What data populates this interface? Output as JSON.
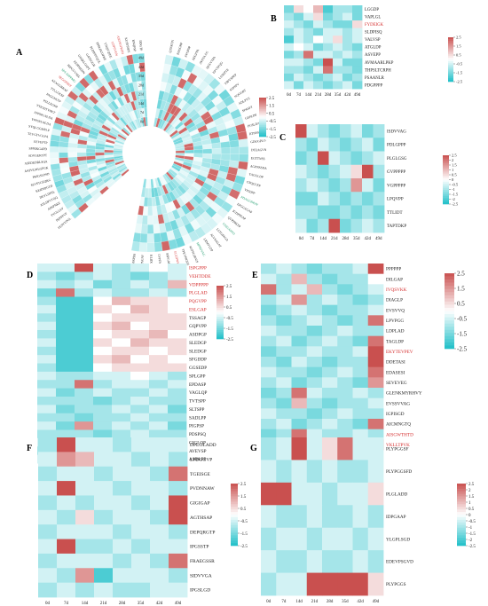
{
  "colors": {
    "low": "#1fbfc8",
    "mid": "#ffffff",
    "high": "#c9504f",
    "highlight_label": "#d42b2b",
    "green_label": "#1a9a6a"
  },
  "chart_data": [
    {
      "id": "A",
      "type": "heatmap",
      "layout": "circular",
      "panel_label": "A",
      "columns": [
        "0d",
        "7d",
        "14d",
        "21d",
        "28d",
        "35d",
        "42d",
        "49d"
      ],
      "colorbar_ticks": [
        "2.5",
        "1.5",
        "0.5",
        "-0.5",
        "-1.5",
        "-2.5"
      ],
      "colorbar_range": [
        -2.5,
        2.5
      ],
      "left_fan_rows": [
        "DDGTP",
        "RNQPSP",
        "KGSFSSPS",
        "ASGSGFRDH",
        "LDPSVGN",
        "YNQVQIEE",
        "TPPLDCOFKE",
        "PLDNSVQGL",
        "GATEGGR",
        "GSQKLGSPT",
        "EESPHEDN",
        "RIPGVVSEL",
        "SPS APPPMG",
        "SEGGPHST",
        "AEAGGRRAF",
        "TTLLGESP",
        "PAGGNLTP",
        "PSLLEGKP",
        "YTIGDTVPKT",
        "FPPSPLNLDA",
        "YPPSPLNLDA",
        "SYQLGGMPLP",
        "TEVGTVGLPA",
        "EEVEPTP",
        "SPPEKGAPD",
        "SDVGEKTPT",
        "ASEDEDRLSQA",
        "AAPVLMLGPGK",
        "PKIGSLPSD",
        "SLVSTGEQKG",
        "KEIDSPGTD",
        "DEVLDPSL",
        "ASLDPVTQQ",
        "APSPNKE",
        "TVGLLSV",
        "PEPPPVF",
        "FESVVPGL"
      ],
      "right_fan_rows": [
        "QTNKTN",
        "NSGGHP",
        "AVGPSP",
        "AEGPTA",
        "AVSYAAG",
        "QGLVTPA",
        "EPVTPQG",
        "LSSEPTE",
        "TSPYSPEP",
        "SSPSPV",
        "NQGGRT",
        "ADLPYS",
        "SPASPT",
        "GEPLDP",
        "PGSLDAP",
        "RTNSSLA",
        "GDGGPLO",
        "DTEAGVN",
        "EGTTNSS",
        "AGPNSSDA",
        "YAGGLDP",
        "GPQGLEP",
        "VIGDPP",
        "PDAGGDPAV",
        "EPGGAGAP",
        "IGDPPEAP",
        "QVPPRLTP",
        "VDIGAPPD",
        "LLTGPAGA",
        "ALVSAGAT",
        "LRMVLDP",
        "MPSDVAG",
        "SGPPGAVGS",
        "TPEVPIGDS",
        "ELEDWSP",
        "SSPGALDD",
        "LVPDVAD",
        "KLIDQSKE",
        "QDPAGAV",
        "LYGSSPDS"
      ],
      "left_red_row_indices": [
        3,
        4,
        13
      ],
      "left_green_row_indices": [
        12
      ],
      "right_red_row_indices": [
        34
      ],
      "right_green_row_indices": [
        23,
        27,
        31
      ]
    },
    {
      "id": "B",
      "type": "heatmap",
      "panel_label": "B",
      "columns": [
        "0d",
        "7d",
        "14d",
        "21d",
        "28d",
        "35d",
        "42d",
        "49d"
      ],
      "rows": [
        "LGGDP",
        "VAPLGL",
        "FYDEIGK",
        "SLDPISQ",
        "VALVSP",
        "ATGLDP",
        "ASVEPP",
        "AVMAARLPKP",
        "THPSLTCRPH",
        "PSAANLR",
        "PDGPPPP"
      ],
      "red_row_indices": [
        2
      ],
      "colorbar_ticks": [
        "2.5",
        "1.5",
        "0.5",
        "-0.5",
        "-1.5",
        "-2.5"
      ],
      "colorbar_range": [
        -2.5,
        2.5
      ],
      "values": [
        [
          -1.5,
          0.5,
          0.0,
          1.0,
          -2.0,
          -1.0,
          -1.0,
          -1.5
        ],
        [
          -1.0,
          -1.5,
          -0.5,
          0.5,
          -1.5,
          -1.0,
          -0.5,
          -1.5
        ],
        [
          -0.5,
          -1.0,
          -1.5,
          -0.5,
          -1.0,
          -1.5,
          -1.5,
          0.5
        ],
        [
          -1.0,
          -0.5,
          -1.0,
          -1.5,
          -0.5,
          -0.5,
          -1.0,
          -0.5
        ],
        [
          -2.0,
          -0.5,
          -1.0,
          0.0,
          -0.5,
          0.5,
          -1.0,
          -0.5
        ],
        [
          -0.5,
          0.0,
          -0.5,
          -1.5,
          -1.0,
          -0.5,
          -1.0,
          -1.5
        ],
        [
          -1.5,
          -1.0,
          2.0,
          -0.5,
          -0.5,
          -1.0,
          -0.5,
          -1.0
        ],
        [
          -0.5,
          -0.5,
          -1.0,
          -1.5,
          2.5,
          -0.5,
          -1.5,
          -1.5
        ],
        [
          -1.0,
          -1.0,
          -1.5,
          -0.5,
          2.0,
          -1.0,
          -1.0,
          -1.5
        ],
        [
          -1.5,
          -0.5,
          -1.0,
          -1.5,
          -1.0,
          -0.5,
          -1.5,
          -1.0
        ],
        [
          -0.5,
          -1.5,
          -0.5,
          -1.0,
          -1.5,
          -1.0,
          -0.5,
          -1.5
        ]
      ]
    },
    {
      "id": "C",
      "type": "heatmap",
      "panel_label": "C",
      "columns": [
        "0d",
        "7d",
        "14d",
        "21d",
        "28d",
        "35d",
        "42d",
        "49d"
      ],
      "rows": [
        "ISDVVAG",
        "PDLGPPP",
        "PLGLGSG",
        "GVPPPPP",
        "VGPPPPP",
        "LPQVPP",
        "TTLIDT",
        "TAPTDKP"
      ],
      "colorbar_ticks": [
        "2.5",
        "2",
        "1.5",
        "1",
        "0.5",
        "0",
        "-0.5",
        "-1",
        "-1.5",
        "-2",
        "-2.5"
      ],
      "colorbar_range": [
        -2.5,
        2.5
      ],
      "values": [
        [
          2.5,
          -0.5,
          -1.0,
          -1.5,
          -1.0,
          -0.5,
          -1.5,
          -1.0
        ],
        [
          -1.0,
          -1.5,
          -0.5,
          -1.0,
          -1.5,
          -1.0,
          -0.5,
          -1.5
        ],
        [
          -1.5,
          -1.0,
          2.5,
          -0.5,
          -1.0,
          -1.5,
          -1.0,
          -0.5
        ],
        [
          -0.5,
          -1.0,
          -1.5,
          -1.0,
          -0.5,
          0.5,
          2.5,
          -1.0
        ],
        [
          -1.0,
          -0.5,
          -1.0,
          -1.5,
          -1.0,
          1.5,
          -0.5,
          -1.5
        ],
        [
          -1.5,
          -1.5,
          -0.5,
          -1.0,
          -1.5,
          -1.0,
          -1.5,
          -1.0
        ],
        [
          -1.0,
          -1.0,
          -1.5,
          -1.5,
          -1.0,
          -1.5,
          -1.0,
          -1.5
        ],
        [
          -0.5,
          -1.5,
          -1.0,
          2.5,
          -1.5,
          -1.0,
          -0.5,
          -1.0
        ]
      ]
    },
    {
      "id": "D",
      "type": "heatmap",
      "panel_label": "D",
      "columns": [
        "0d",
        "7d",
        "14d",
        "21d",
        "28d",
        "35d",
        "42d",
        "49d"
      ],
      "rows": [
        "ISPGPPP",
        "VEHTDDE",
        "VDPPPPP",
        "PLGLAD",
        "PQGVPP",
        "ESLGAP",
        "TSSAGP",
        "GQPVPP",
        "ASDPGP",
        "SLEDGP",
        "SLEDGP",
        "SFGDDP",
        "GGSEDP",
        "SPLGPP",
        "EPDASP",
        "VAGLQP",
        "TVTSPP",
        "SLTSPP",
        "SADLPP",
        "PIGPSP",
        "PDSPSQ",
        "GIGLQP",
        "AVEVSP",
        "ASDLPP"
      ],
      "red_row_indices": [
        0,
        1,
        2,
        3,
        4,
        5
      ],
      "colorbar_ticks": [
        "2.5",
        "1.5",
        "0.5",
        "-0.5",
        "-1.5",
        "-2.5"
      ],
      "colorbar_range": [
        -2.5,
        2.5
      ],
      "values": [
        [
          -0.5,
          -0.5,
          2.5,
          -0.5,
          -1.0,
          -0.5,
          0.0,
          -0.5
        ],
        [
          -1.0,
          -1.5,
          -1.0,
          -0.5,
          -1.0,
          -1.5,
          -1.0,
          -0.5
        ],
        [
          -0.5,
          -1.0,
          -0.5,
          -1.5,
          -1.0,
          -0.5,
          -1.0,
          1.0
        ],
        [
          -1.5,
          2.0,
          -1.0,
          -0.5,
          -1.0,
          -1.0,
          -0.5,
          -1.0
        ],
        [
          -1.0,
          -2.0,
          -2.0,
          0.0,
          1.0,
          0.5,
          0.5,
          0.0
        ],
        [
          -0.5,
          -2.0,
          -2.0,
          0.5,
          0.0,
          1.0,
          0.5,
          0.0
        ],
        [
          -1.0,
          -2.0,
          -2.0,
          0.0,
          0.5,
          0.5,
          0.5,
          0.5
        ],
        [
          -0.5,
          -2.0,
          -2.0,
          0.5,
          1.0,
          0.0,
          0.5,
          0.5
        ],
        [
          -1.0,
          -2.0,
          -2.0,
          0.0,
          0.5,
          0.5,
          1.0,
          0.0
        ],
        [
          -0.5,
          -2.0,
          -2.0,
          0.5,
          0.0,
          1.0,
          0.5,
          0.5
        ],
        [
          -1.0,
          -2.0,
          -2.0,
          0.0,
          0.5,
          0.5,
          0.0,
          0.5
        ],
        [
          -0.5,
          -2.0,
          -2.0,
          0.5,
          1.0,
          0.0,
          0.5,
          0.0
        ],
        [
          -1.0,
          -2.0,
          -2.0,
          0.0,
          0.5,
          0.5,
          0.5,
          0.5
        ],
        [
          -0.5,
          -1.0,
          -1.0,
          -0.5,
          -0.5,
          0.0,
          -0.5,
          -1.0
        ],
        [
          -1.0,
          -1.0,
          2.0,
          -1.0,
          -0.5,
          -0.5,
          -1.0,
          -0.5
        ],
        [
          -0.5,
          -1.5,
          -1.0,
          -0.5,
          -1.0,
          -1.0,
          -0.5,
          -1.0
        ],
        [
          -1.0,
          -1.0,
          -1.0,
          -1.5,
          -1.0,
          -0.5,
          -1.0,
          -1.0
        ],
        [
          -0.5,
          -1.5,
          -1.0,
          -1.0,
          -0.5,
          -1.0,
          -0.5,
          -1.5
        ],
        [
          -1.0,
          -1.0,
          -1.5,
          -1.0,
          -1.0,
          -0.5,
          -1.0,
          -1.0
        ],
        [
          -0.5,
          -1.5,
          1.5,
          -1.0,
          -0.5,
          -1.0,
          -0.5,
          -1.5
        ],
        [
          -1.0,
          -1.0,
          -1.0,
          -1.5,
          -1.0,
          -0.5,
          -1.0,
          -1.0
        ],
        [
          -0.5,
          -1.5,
          -1.0,
          -1.0,
          -0.5,
          -1.0,
          -0.5,
          -1.5
        ],
        [
          -1.0,
          -1.0,
          -1.5,
          -1.0,
          -1.0,
          -0.5,
          -1.0,
          -1.0
        ],
        [
          -0.5,
          -1.5,
          -1.0,
          -1.0,
          -0.5,
          -1.0,
          -0.5,
          -1.5
        ]
      ]
    },
    {
      "id": "E",
      "type": "heatmap",
      "panel_label": "E",
      "columns": [
        "0d",
        "7d",
        "14d",
        "21d",
        "28d",
        "35d",
        "42d",
        "49d"
      ],
      "rows": [
        "PPPPPP",
        "DILGAP",
        "IVQSVKK",
        "DIAGLP",
        "EVSVVQ",
        "LPVPGG",
        "LDPLAD",
        "TAGLDP",
        "EKYTEVPEV",
        "DDETASI",
        "EDASESI",
        "SEVEVEG",
        "GLENKMYRHVY",
        "EVSSVVAG",
        "IGPISGD",
        "AICMNGTQ",
        "AISGWTHTD",
        "VKLLTPVK"
      ],
      "red_row_indices": [
        2,
        8,
        16,
        17
      ],
      "colorbar_ticks": [
        "2.5",
        "1.5",
        "0.5",
        "-0.5",
        "-1.5",
        "-2.5"
      ],
      "colorbar_range": [
        -2.5,
        2.5
      ],
      "values": [
        [
          -1.0,
          -0.5,
          -1.0,
          -1.5,
          -1.0,
          -1.0,
          -0.5,
          2.5
        ],
        [
          -0.5,
          -1.0,
          1.0,
          -1.0,
          -1.5,
          -1.0,
          -1.0,
          0.0
        ],
        [
          2.0,
          -1.0,
          -0.5,
          1.0,
          -1.0,
          -1.5,
          -1.0,
          -0.5
        ],
        [
          -1.0,
          -0.5,
          1.5,
          -1.0,
          -0.5,
          -1.0,
          -1.5,
          -1.0
        ],
        [
          -1.5,
          -1.0,
          -0.5,
          -1.0,
          -1.5,
          -1.0,
          -1.0,
          -0.5
        ],
        [
          -1.0,
          -1.5,
          -1.0,
          -0.5,
          -1.0,
          -1.5,
          -1.0,
          2.0
        ],
        [
          -0.5,
          -1.0,
          -1.0,
          -1.5,
          -1.0,
          -0.5,
          -1.0,
          -1.0
        ],
        [
          -1.0,
          -0.5,
          -1.5,
          -1.0,
          -0.5,
          -1.0,
          -1.5,
          2.0
        ],
        [
          -1.5,
          -1.0,
          -1.0,
          -0.5,
          -1.0,
          -1.0,
          -0.5,
          2.5
        ],
        [
          -1.0,
          -1.5,
          -0.5,
          -1.0,
          -1.5,
          -1.0,
          -1.0,
          2.5
        ],
        [
          -0.5,
          -1.0,
          -1.0,
          -1.5,
          -1.0,
          -0.5,
          -1.0,
          2.0
        ],
        [
          -1.0,
          -0.5,
          -1.5,
          -1.0,
          -0.5,
          -1.0,
          -1.5,
          1.5
        ],
        [
          -1.5,
          -1.0,
          2.0,
          -0.5,
          -1.0,
          -1.0,
          -0.5,
          -1.0
        ],
        [
          -1.0,
          -1.5,
          1.0,
          -1.0,
          -1.5,
          -1.0,
          -1.0,
          -0.5
        ],
        [
          -0.5,
          -1.0,
          -1.0,
          -1.5,
          -1.0,
          -0.5,
          -1.0,
          -1.0
        ],
        [
          -1.0,
          -0.5,
          -1.5,
          -1.0,
          -0.5,
          -1.0,
          -1.5,
          2.0
        ],
        [
          -1.5,
          -1.0,
          2.0,
          -0.5,
          -1.0,
          -1.0,
          -0.5,
          -1.0
        ],
        [
          -1.0,
          -1.5,
          -1.0,
          -1.0,
          -1.5,
          -1.0,
          -1.0,
          2.5
        ]
      ]
    },
    {
      "id": "F",
      "type": "heatmap",
      "panel_label": "F",
      "columns": [
        "0d",
        "7d",
        "14d",
        "21d",
        "28d",
        "35d",
        "42d",
        "49d"
      ],
      "rows": [
        "DPLGLADD",
        "LPDGGVP",
        "TGEISGE",
        "PVDNNAW",
        "GIGIGAP",
        "AGTHSAP",
        "DEPQRGTP",
        "IPGSSTP",
        "FRAEGSSR",
        "SIDVVGA",
        "IPGSLGD"
      ],
      "colorbar_ticks": [
        "2.5",
        "1.5",
        "0.5",
        "-0.5",
        "-1.5",
        "-2.5"
      ],
      "colorbar_range": [
        -2.5,
        2.5
      ],
      "values": [
        [
          -1.0,
          2.5,
          -0.5,
          -0.5,
          -1.0,
          -0.5,
          -0.5,
          -0.5
        ],
        [
          -0.5,
          1.5,
          1.0,
          -0.5,
          -0.5,
          -1.0,
          -0.5,
          -1.0
        ],
        [
          -1.0,
          -0.5,
          -0.5,
          -1.0,
          -0.5,
          -0.5,
          -1.0,
          2.0
        ],
        [
          -0.5,
          2.5,
          -0.5,
          -0.5,
          -1.0,
          -0.5,
          -0.5,
          -1.0
        ],
        [
          -1.0,
          -0.5,
          -1.0,
          -0.5,
          -0.5,
          -1.0,
          -0.5,
          2.5
        ],
        [
          -0.5,
          -1.0,
          0.5,
          -1.0,
          -0.5,
          -0.5,
          -1.0,
          2.5
        ],
        [
          -1.0,
          -0.5,
          -0.5,
          -0.5,
          -1.0,
          -0.5,
          -0.5,
          -1.0
        ],
        [
          -0.5,
          2.5,
          -1.0,
          -1.0,
          -0.5,
          -1.0,
          -0.5,
          -0.5
        ],
        [
          -1.0,
          -0.5,
          -0.5,
          -0.5,
          -1.0,
          -0.5,
          -1.0,
          2.0
        ],
        [
          -0.5,
          -1.0,
          1.5,
          -2.0,
          -0.5,
          -0.5,
          -0.5,
          -1.0
        ],
        [
          -1.0,
          -0.5,
          -1.0,
          -0.5,
          -1.0,
          -1.0,
          -0.5,
          -0.5
        ]
      ]
    },
    {
      "id": "G",
      "type": "heatmap",
      "panel_label": "G",
      "columns": [
        "0d",
        "7d",
        "14d",
        "21d",
        "28d",
        "35d",
        "42d",
        "49d"
      ],
      "rows": [
        "PLYPGGSF",
        "PLYPGGSFD",
        "PLGLADD",
        "IDPGAAP",
        "YLGPLSGD",
        "EDEVPSGVD",
        "PLYPGGS"
      ],
      "colorbar_ticks": [
        "2.5",
        "2",
        "1.5",
        "1",
        "0.5",
        "0",
        "-0.5",
        "-1",
        "-1.5",
        "-2",
        "-2.5"
      ],
      "colorbar_range": [
        -2.5,
        2.5
      ],
      "values": [
        [
          -1.0,
          -0.5,
          2.5,
          -0.5,
          0.5,
          2.0,
          -0.5,
          -0.5
        ],
        [
          -0.5,
          -1.0,
          -0.5,
          -1.0,
          -0.5,
          -1.0,
          -1.0,
          -0.5
        ],
        [
          2.5,
          2.5,
          -0.5,
          -0.5,
          -1.0,
          -0.5,
          -0.5,
          0.5
        ],
        [
          -0.5,
          -1.0,
          -1.0,
          -0.5,
          -1.0,
          -1.0,
          -0.5,
          -1.0
        ],
        [
          -1.0,
          -0.5,
          -0.5,
          -1.0,
          -0.5,
          -0.5,
          -1.0,
          -0.5
        ],
        [
          -0.5,
          -1.0,
          -1.0,
          -0.5,
          -1.0,
          -1.0,
          -0.5,
          -1.0
        ],
        [
          -1.0,
          -0.5,
          -0.5,
          2.5,
          2.5,
          2.5,
          2.5,
          0.5
        ]
      ]
    }
  ]
}
